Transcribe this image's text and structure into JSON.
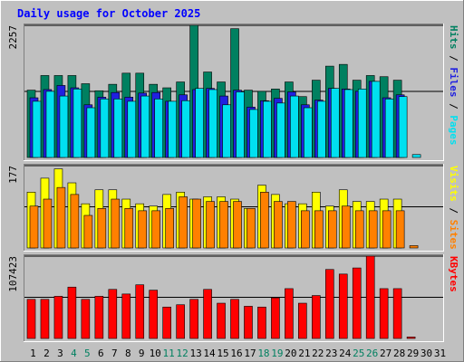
{
  "chart_data": {
    "type": "bar",
    "title": "Daily usage for October 2025",
    "categories": [
      "1",
      "2",
      "3",
      "4",
      "5",
      "6",
      "7",
      "8",
      "9",
      "10",
      "11",
      "12",
      "13",
      "14",
      "15",
      "16",
      "17",
      "18",
      "19",
      "20",
      "21",
      "22",
      "23",
      "24",
      "25",
      "26",
      "27",
      "28",
      "29",
      "30",
      "31"
    ],
    "weekend_days": [
      "4",
      "5",
      "11",
      "12",
      "18",
      "19",
      "25",
      "26"
    ],
    "panels": [
      {
        "id": "hits-files-pages",
        "ymax_label": "2257",
        "ylim": [
          0,
          2257
        ],
        "legend": [
          "Pages",
          "/",
          "Files",
          "/",
          "Hits"
        ],
        "series": [
          {
            "name": "Hits",
            "color": "#008060",
            "values": [
              1150,
              1400,
              1400,
              1400,
              1260,
              1140,
              1250,
              1440,
              1440,
              1250,
              1190,
              1290,
              2257,
              1460,
              1290,
              2200,
              1150,
              1130,
              1170,
              1290,
              1040,
              1320,
              1560,
              1590,
              1320,
              1400,
              1380,
              1320,
              0,
              0,
              0
            ]
          },
          {
            "name": "Files",
            "color": "#2020e0",
            "values": [
              1020,
              1160,
              1230,
              1190,
              900,
              1030,
              1110,
              1030,
              1100,
              1110,
              960,
              1070,
              1160,
              1180,
              1050,
              1150,
              860,
              970,
              1010,
              1120,
              900,
              980,
              1180,
              1170,
              1130,
              1300,
              1020,
              1070,
              0,
              0,
              0
            ]
          },
          {
            "name": "Pages",
            "color": "#00e0f0",
            "values": [
              960,
              1130,
              1050,
              1170,
              850,
              1000,
              1000,
              960,
              1050,
              1000,
              960,
              970,
              1180,
              1160,
              900,
              1120,
              820,
              960,
              930,
              1050,
              850,
              960,
              1180,
              1160,
              1170,
              1300,
              1000,
              1040,
              50,
              0,
              0
            ]
          }
        ]
      },
      {
        "id": "visits-sites",
        "ymax_label": "177",
        "ylim": [
          0,
          177
        ],
        "legend": [
          "Sites",
          "/",
          "Visits"
        ],
        "series": [
          {
            "name": "Visits",
            "color": "#ffff00",
            "values": [
              120,
              150,
              170,
              140,
              95,
              125,
              125,
              105,
              95,
              90,
              115,
              120,
              105,
              110,
              110,
              105,
              85,
              135,
              115,
              95,
              95,
              120,
              90,
              125,
              100,
              100,
              105,
              105,
              0,
              0,
              0
            ]
          },
          {
            "name": "Sites",
            "color": "#ff8000",
            "values": [
              90,
              105,
              130,
              115,
              70,
              85,
              105,
              85,
              80,
              80,
              85,
              110,
              105,
              100,
              100,
              100,
              85,
              120,
              100,
              100,
              80,
              80,
              80,
              90,
              80,
              80,
              80,
              80,
              5,
              0,
              0
            ]
          }
        ]
      },
      {
        "id": "kbytes",
        "ymax_label": "107423",
        "ylim": [
          0,
          107423
        ],
        "legend": [
          "KBytes"
        ],
        "series": [
          {
            "name": "KBytes",
            "color": "#ff0000",
            "values": [
              51000,
              51000,
              55000,
              67000,
              51000,
              55000,
              64000,
              58000,
              70000,
              63000,
              41000,
              44000,
              51000,
              64000,
              46000,
              51000,
              42000,
              41000,
              53000,
              65000,
              46000,
              56000,
              90000,
              84000,
              92000,
              107423,
              65000,
              65000,
              2000,
              0,
              0
            ]
          }
        ]
      }
    ]
  }
}
